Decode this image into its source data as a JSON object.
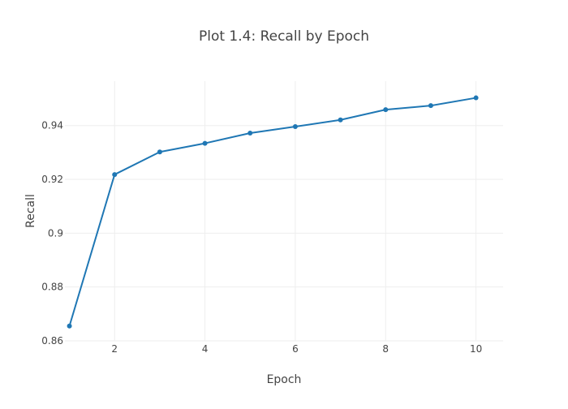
{
  "chart_data": {
    "type": "line",
    "title": "Plot 1.4: Recall by Epoch",
    "xlabel": "Epoch",
    "ylabel": "Recall",
    "x": [
      1,
      2,
      3,
      4,
      5,
      6,
      7,
      8,
      9,
      10
    ],
    "series": [
      {
        "values": [
          0.8655,
          0.9218,
          0.9302,
          0.9334,
          0.9372,
          0.9396,
          0.9421,
          0.9459,
          0.9474,
          0.9503
        ],
        "color": "#1f77b4"
      }
    ],
    "xlim": [
      0.9,
      10.6
    ],
    "ylim": [
      0.86,
      0.9565
    ],
    "x_ticks": [
      2,
      4,
      6,
      8,
      10
    ],
    "x_tick_labels": [
      "2",
      "4",
      "6",
      "8",
      "10"
    ],
    "y_ticks": [
      0.86,
      0.88,
      0.9,
      0.92,
      0.94
    ],
    "y_tick_labels": [
      "0.86",
      "0.88",
      "0.9",
      "0.92",
      "0.94"
    ],
    "grid": true,
    "legend": false
  }
}
